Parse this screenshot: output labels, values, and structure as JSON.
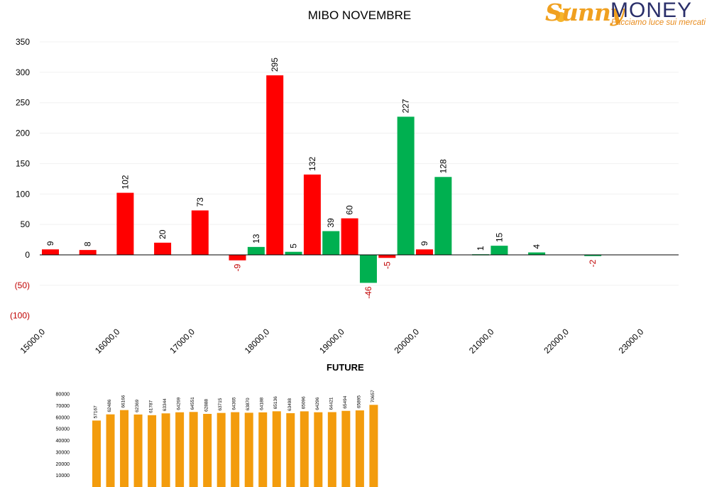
{
  "title": "MIBO NOVEMBRE",
  "logo": {
    "brand_sunny": "Sunny",
    "brand_money": "MONEY",
    "tagline": "Facciamo luce sui mercati"
  },
  "colors": {
    "negative_oi": "#ff0000",
    "positive_oi": "#00b050",
    "future_bar": "#f39c0d",
    "negative_label": "#c00000"
  },
  "chart_data": [
    {
      "type": "bar",
      "title": "MIBO NOVEMBRE",
      "xlabel": "",
      "ylabel": "",
      "x_tick_labels": [
        "15000,0",
        "16000,0",
        "17000,0",
        "18000,0",
        "19000,0",
        "20000,0",
        "21000,0",
        "22000,0",
        "23000,0"
      ],
      "y_tick_labels": [
        "350",
        "300",
        "250",
        "200",
        "150",
        "100",
        "50",
        "0",
        "(50)",
        "(100)"
      ],
      "ylim": [
        -100,
        350
      ],
      "grid": true,
      "bars": [
        {
          "strike": 15000,
          "value": 9,
          "color": "red",
          "label": "9"
        },
        {
          "strike": 15500,
          "value": 8,
          "color": "red",
          "label": "8"
        },
        {
          "strike": 16000,
          "value": 102,
          "color": "red",
          "label": "102"
        },
        {
          "strike": 16500,
          "value": 20,
          "color": "red",
          "label": "20"
        },
        {
          "strike": 17000,
          "value": 73,
          "color": "red",
          "label": "73"
        },
        {
          "strike": 17500,
          "value": -9,
          "color": "red",
          "label": "-9"
        },
        {
          "strike": 17750,
          "value": 13,
          "color": "green",
          "label": "13"
        },
        {
          "strike": 18000,
          "value": 295,
          "color": "red",
          "label": "295"
        },
        {
          "strike": 18250,
          "value": 5,
          "color": "green",
          "label": "5"
        },
        {
          "strike": 18500,
          "value": 132,
          "color": "red",
          "label": "132"
        },
        {
          "strike": 18750,
          "value": 39,
          "color": "green",
          "label": "39"
        },
        {
          "strike": 19000,
          "value": 60,
          "color": "red",
          "label": "60"
        },
        {
          "strike": 19250,
          "value": -46,
          "color": "green",
          "label": "-46"
        },
        {
          "strike": 19500,
          "value": -5,
          "color": "red",
          "label": "-5"
        },
        {
          "strike": 19750,
          "value": 227,
          "color": "green",
          "label": "227"
        },
        {
          "strike": 20000,
          "value": 9,
          "color": "red",
          "label": "9"
        },
        {
          "strike": 20250,
          "value": 128,
          "color": "green",
          "label": "128"
        },
        {
          "strike": 20750,
          "value": 1,
          "color": "green",
          "label": "1"
        },
        {
          "strike": 21000,
          "value": 15,
          "color": "green",
          "label": "15"
        },
        {
          "strike": 21500,
          "value": 4,
          "color": "green",
          "label": "4"
        },
        {
          "strike": 22250,
          "value": -2,
          "color": "green",
          "label": "-2"
        }
      ]
    },
    {
      "type": "bar",
      "title": "FUTURE",
      "xlabel": "",
      "ylabel": "",
      "y_tick_labels": [
        "80000",
        "70000",
        "60000",
        "50000",
        "40000",
        "30000",
        "20000",
        "10000"
      ],
      "ylim": [
        0,
        80000
      ],
      "values": [
        57167,
        62486,
        66166,
        62369,
        61787,
        63344,
        64269,
        64551,
        62888,
        63715,
        64365,
        63870,
        64188,
        65136,
        63498,
        65096,
        64296,
        64421,
        65494,
        65895,
        70657
      ]
    }
  ]
}
